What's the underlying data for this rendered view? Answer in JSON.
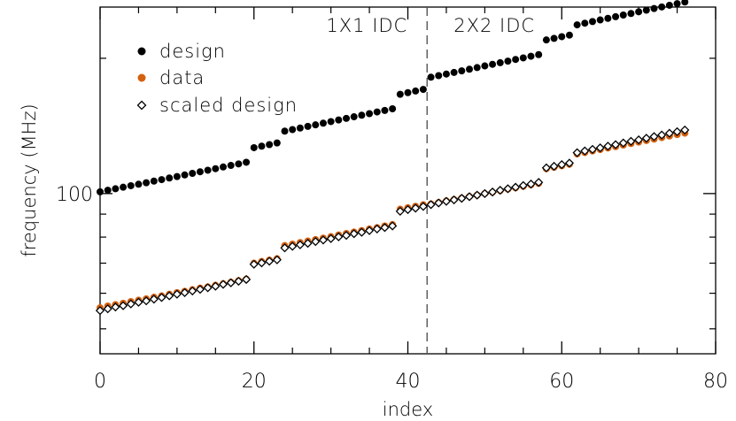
{
  "chart_data": {
    "type": "scatter",
    "xlabel": "index",
    "ylabel": "frequency (MHz)",
    "xlim": [
      0,
      80
    ],
    "x_ticks": [
      0,
      20,
      40,
      60,
      80
    ],
    "y_log_scale": true,
    "y_ticks_labeled": [
      100
    ],
    "y_ticks_minor": [
      50,
      60,
      70,
      80,
      90,
      200
    ],
    "ylim": [
      44,
      260
    ],
    "grid": false,
    "legend_position": "top-left",
    "colors": {
      "design": "#000000",
      "data": "#d4610f",
      "scaled_design_edge": "#000000",
      "scaled_design_fill": "#ffffff",
      "divider": "#555555"
    },
    "regions": [
      {
        "label": "1X1 IDC",
        "side": "left"
      },
      {
        "label": "2X2 IDC",
        "side": "right"
      }
    ],
    "divider_x": 42.5,
    "series": [
      {
        "name": "design",
        "marker": "filled-circle",
        "x": [
          0,
          1,
          2,
          3,
          4,
          5,
          6,
          7,
          8,
          9,
          10,
          11,
          12,
          13,
          14,
          15,
          16,
          17,
          18,
          19,
          20,
          21,
          22,
          23,
          24,
          25,
          26,
          27,
          28,
          29,
          30,
          31,
          32,
          33,
          34,
          35,
          36,
          37,
          38,
          39,
          40,
          41,
          42,
          43,
          44,
          45,
          46,
          47,
          48,
          49,
          50,
          51,
          52,
          53,
          54,
          55,
          56,
          57,
          58,
          59,
          60,
          61,
          62,
          63,
          64,
          65,
          66,
          67,
          68,
          69,
          70,
          71,
          72,
          73,
          74,
          75,
          76
        ],
        "y": [
          100.9,
          101.7,
          102.5,
          103.3,
          104.1,
          104.9,
          105.7,
          106.6,
          107.4,
          108.3,
          109.1,
          110,
          110.9,
          111.8,
          112.7,
          113.6,
          114.6,
          115.5,
          116.4,
          117.4,
          126.5,
          127.5,
          128.5,
          129.6,
          137.7,
          138.8,
          139.9,
          141.1,
          142.2,
          143.4,
          144.6,
          145.8,
          147,
          148.2,
          149.4,
          150.6,
          151.9,
          153.1,
          154.4,
          166.3,
          167.7,
          169.1,
          170.5,
          181.5,
          183,
          184.5,
          186,
          187.5,
          189.1,
          190.7,
          192.3,
          193.9,
          195.5,
          197.1,
          198.8,
          200.4,
          202.1,
          203.8,
          219.7,
          221.5,
          223.4,
          225.2,
          237.4,
          239.4,
          241.4,
          243.4,
          245.4,
          247.5,
          249.6,
          251.6,
          253.8,
          255.9,
          258.1,
          260.2,
          262.4,
          264.6,
          266.8
        ]
      },
      {
        "name": "data",
        "marker": "filled-circle",
        "x": [
          0,
          1,
          2,
          3,
          4,
          5,
          6,
          7,
          8,
          9,
          10,
          11,
          12,
          13,
          14,
          15,
          16,
          17,
          18,
          19,
          20,
          21,
          22,
          23,
          24,
          25,
          26,
          27,
          28,
          29,
          30,
          31,
          32,
          33,
          34,
          35,
          36,
          37,
          38,
          39,
          40,
          41,
          42,
          43,
          44,
          45,
          46,
          47,
          48,
          49,
          50,
          51,
          52,
          53,
          54,
          55,
          56,
          57,
          58,
          59,
          60,
          61,
          62,
          63,
          64,
          65,
          66,
          67,
          68,
          69,
          70,
          71,
          72,
          73,
          74,
          75,
          76
        ],
        "y": [
          55.7,
          56.2,
          56.6,
          57,
          57.5,
          57.9,
          58.3,
          58.8,
          59.2,
          59.7,
          60.2,
          60.6,
          61.1,
          61.6,
          62,
          62.5,
          63,
          63.5,
          64,
          64.5,
          70,
          70.6,
          71.1,
          71.6,
          76.6,
          77.2,
          77.8,
          78.4,
          79,
          79.6,
          80.2,
          80.9,
          81.5,
          82.1,
          82.7,
          83.4,
          84,
          84.7,
          85.3,
          92.3,
          93,
          93.7,
          94.4,
          94.8,
          95.5,
          96.3,
          97,
          97.7,
          98.5,
          99.2,
          100,
          100.7,
          101.5,
          102.3,
          103,
          103.8,
          104.6,
          105.4,
          113.6,
          114.4,
          115.3,
          116.2,
          122.5,
          123.4,
          124.4,
          125.3,
          126.3,
          127.2,
          128.2,
          129.2,
          130.2,
          131.2,
          132.2,
          133.2,
          134.3,
          135.3,
          136.3
        ]
      },
      {
        "name": "scaled design",
        "marker": "open-diamond",
        "x": [
          0,
          1,
          2,
          3,
          4,
          5,
          6,
          7,
          8,
          9,
          10,
          11,
          12,
          13,
          14,
          15,
          16,
          17,
          18,
          19,
          20,
          21,
          22,
          23,
          24,
          25,
          26,
          27,
          28,
          29,
          30,
          31,
          32,
          33,
          34,
          35,
          36,
          37,
          38,
          39,
          40,
          41,
          42,
          43,
          44,
          45,
          46,
          47,
          48,
          49,
          50,
          51,
          52,
          53,
          54,
          55,
          56,
          57,
          58,
          59,
          60,
          61,
          62,
          63,
          64,
          65,
          66,
          67,
          68,
          69,
          70,
          71,
          72,
          73,
          74,
          75,
          76
        ],
        "y": [
          54.9,
          55.4,
          55.9,
          56.3,
          56.8,
          57.3,
          57.7,
          58.2,
          58.7,
          59.2,
          59.7,
          60.2,
          60.7,
          61.2,
          61.7,
          62.2,
          62.8,
          63.3,
          63.8,
          64.4,
          69.6,
          70.1,
          70.7,
          71.2,
          75.7,
          76.3,
          76.9,
          77.5,
          78.2,
          78.8,
          79.4,
          80.1,
          80.7,
          81.4,
          82,
          82.7,
          83.4,
          84,
          84.7,
          91.3,
          92.1,
          92.8,
          93.6,
          94.5,
          95.3,
          96.1,
          96.8,
          97.6,
          98.4,
          99.2,
          100,
          100.8,
          101.7,
          102.5,
          103.3,
          104.2,
          105,
          105.9,
          114.1,
          115,
          116,
          116.9,
          123.3,
          124.4,
          125.4,
          126.4,
          127.5,
          128.5,
          129.6,
          130.7,
          131.7,
          132.8,
          133.9,
          135,
          136.2,
          137.3,
          138.5
        ]
      }
    ]
  }
}
